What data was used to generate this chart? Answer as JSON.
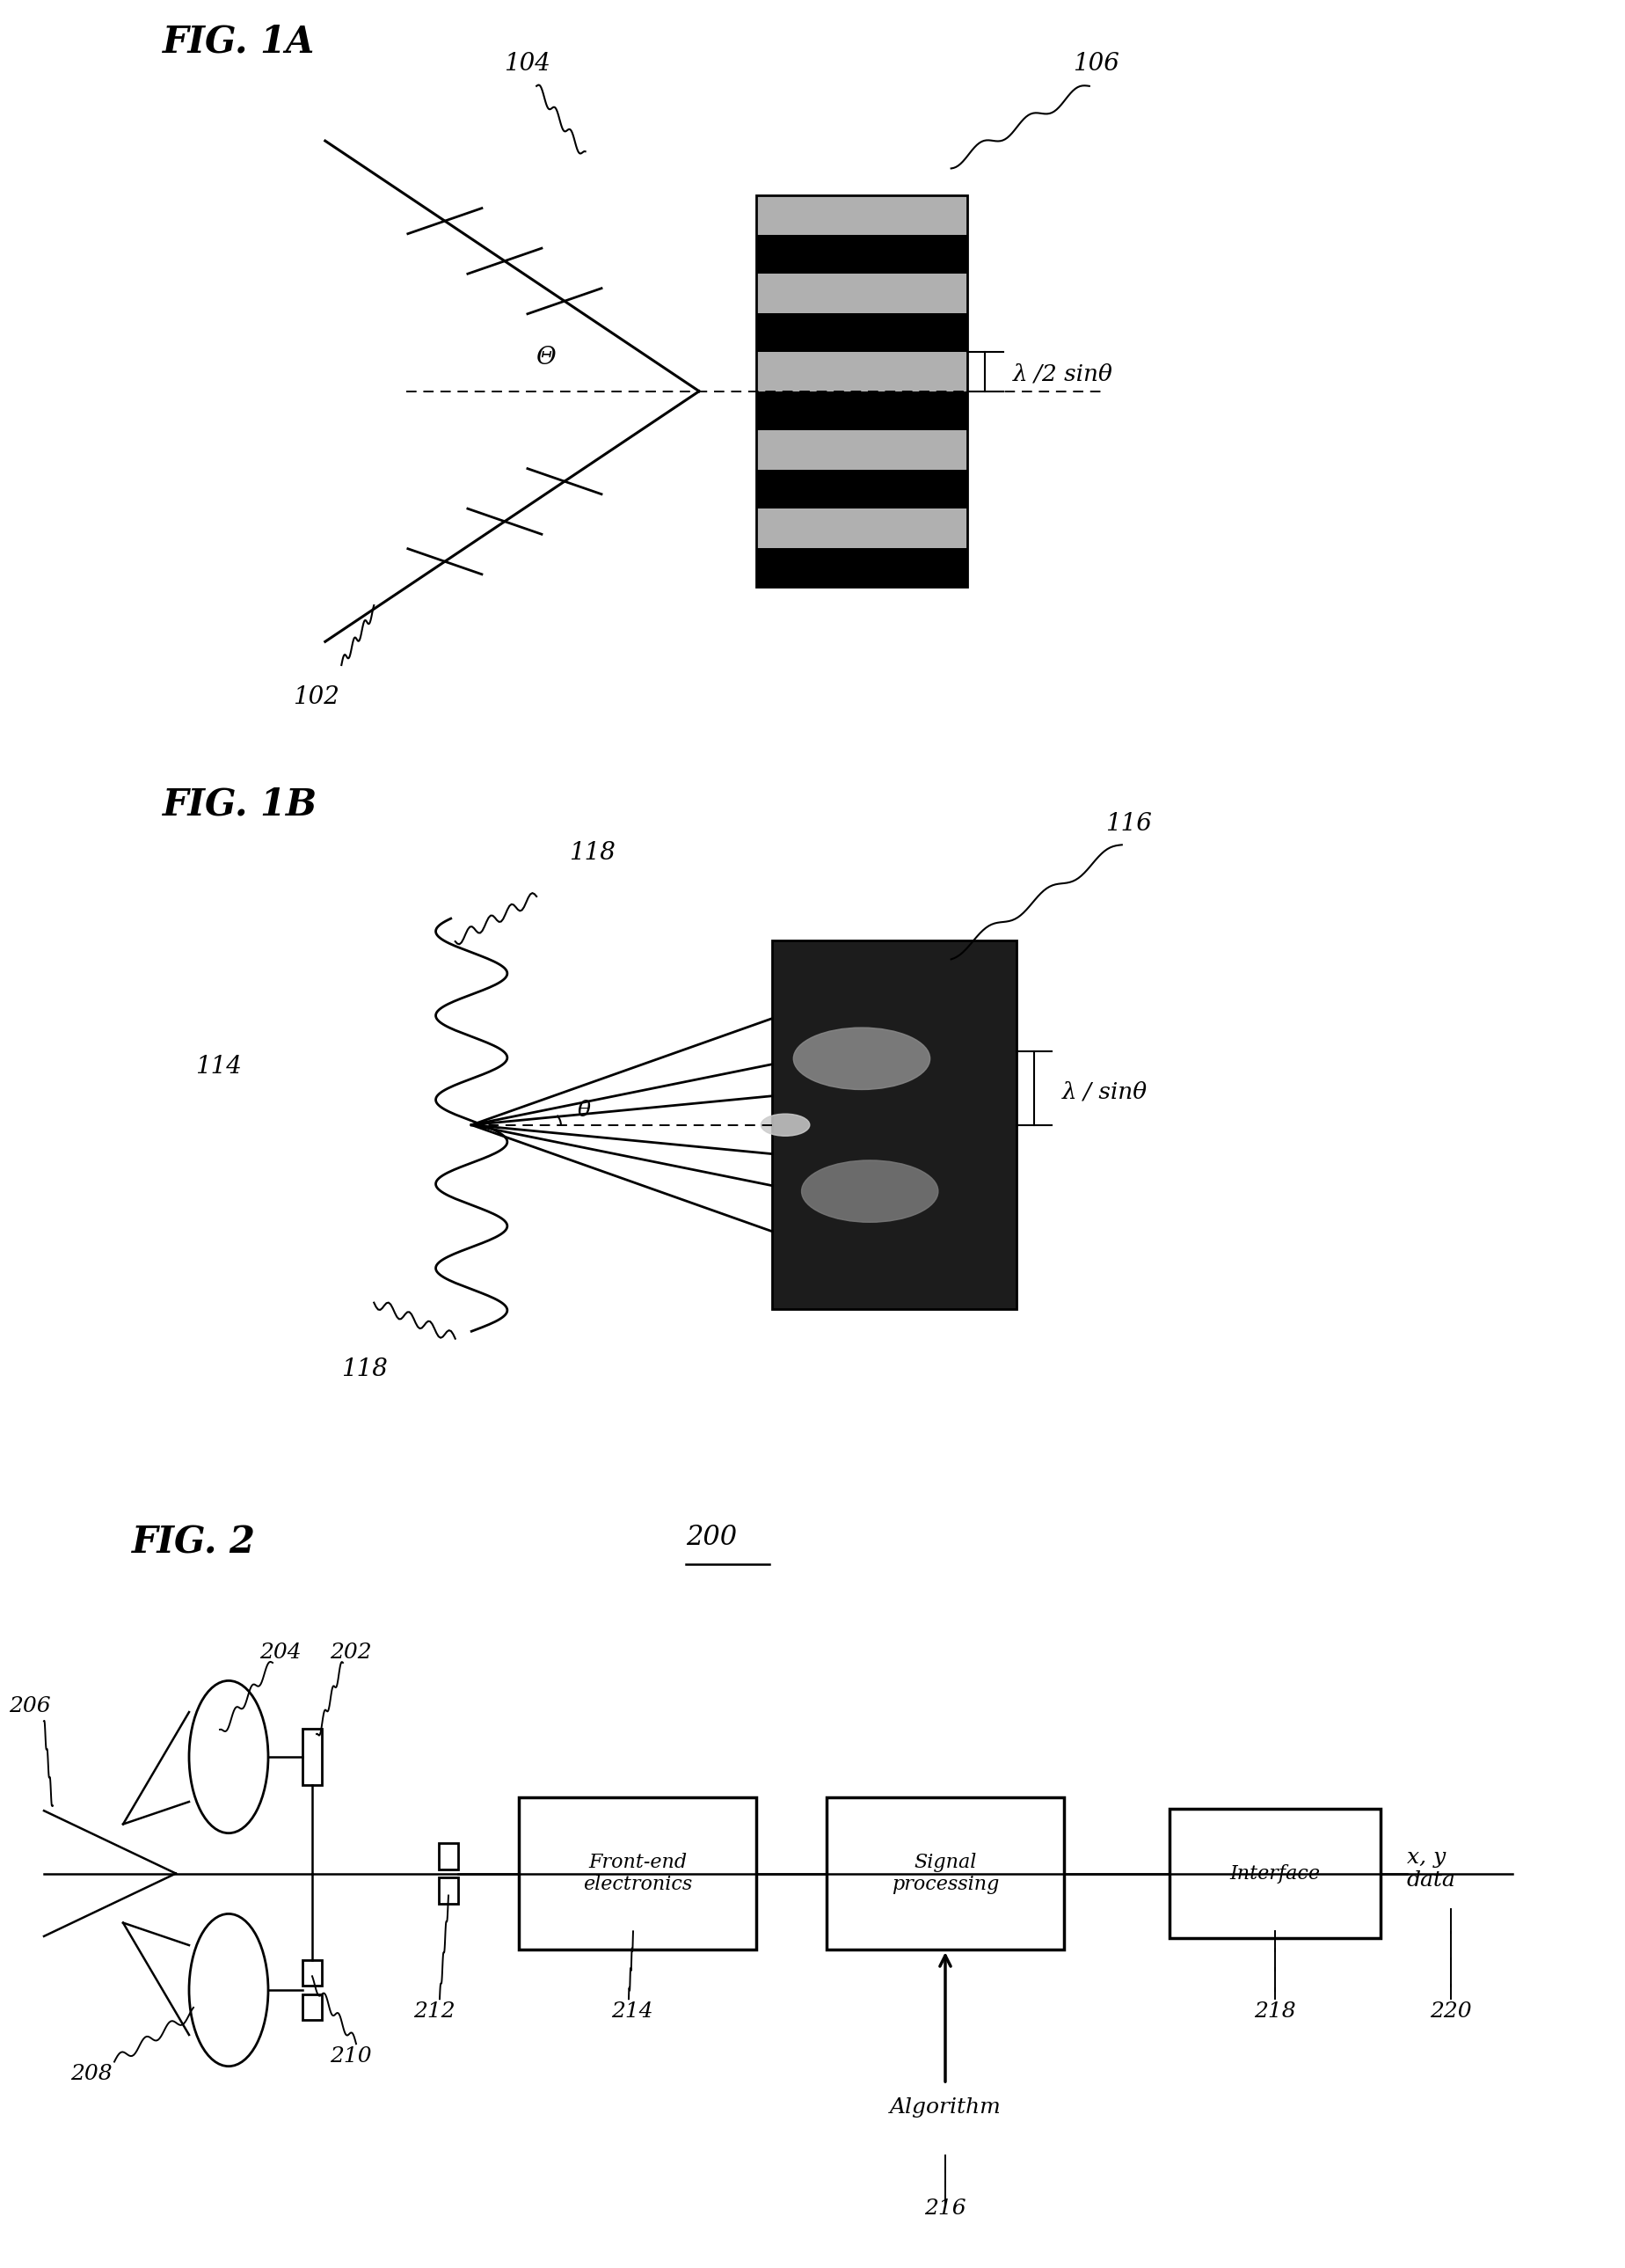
{
  "fig_title_1A": "FIG. 1A",
  "fig_title_1B": "FIG. 1B",
  "fig_title_2": "FIG. 2",
  "bg_color": "#ffffff",
  "label_102": "102",
  "label_104": "104",
  "label_106": "106",
  "label_lambda_1A": "λ /2 sinθ",
  "label_theta_1A": "Θ",
  "label_114": "114",
  "label_116": "116",
  "label_118_top": "118",
  "label_118_bot": "118",
  "label_lambda_1B": "λ / sinθ",
  "label_theta_1B": "θ",
  "label_200": "200",
  "label_202": "202",
  "label_204": "204",
  "label_206": "206",
  "label_208": "208",
  "label_210": "210",
  "label_212": "212",
  "label_214": "214",
  "label_216": "216",
  "label_218": "218",
  "label_220": "220",
  "box_frontend": "Front-end\nelectronics",
  "box_signal": "Signal\nprocessing",
  "box_interface": "Interface",
  "label_algorithm": "Algorithm",
  "label_xy": "x, y\ndata"
}
